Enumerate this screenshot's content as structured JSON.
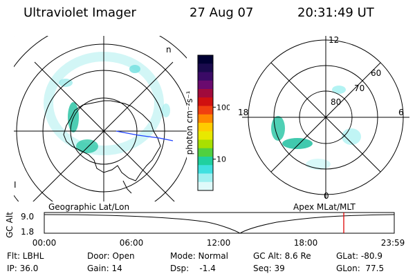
{
  "header": {
    "title": "Ultraviolet Imager",
    "date": "27 Aug 07",
    "time": "20:31:49 UT"
  },
  "left_map": {
    "caption": "Geographic Lat/Lon",
    "edge_marks": [
      "n",
      "I"
    ]
  },
  "right_map": {
    "caption": "Apex MLat/MLT",
    "mlt_labels": [
      "12",
      "18",
      "6",
      "0"
    ],
    "mlat_labels": [
      "60",
      "70",
      "80"
    ]
  },
  "colorbar": {
    "unit_label": "photon cm⁻²s⁻¹",
    "scale": "log",
    "ticks": [
      {
        "value": 100,
        "label": "100"
      },
      {
        "value": 10,
        "label": "10"
      }
    ],
    "colors": [
      "#000033",
      "#1a0a4d",
      "#3a0a66",
      "#6a0a6e",
      "#a00a3c",
      "#d01010",
      "#f04010",
      "#ff8800",
      "#ffcc00",
      "#e8e800",
      "#a8e000",
      "#50d040",
      "#20d0a0",
      "#40e0e0",
      "#a0f0f0",
      "#dffafa"
    ]
  },
  "timeline": {
    "ylabel": "GC Alt",
    "yticks": [
      "9.0",
      "1.8"
    ],
    "xticks": [
      "00:00",
      "06:00",
      "12:00",
      "18:00",
      "23:59"
    ],
    "marker_color": "#dd0000"
  },
  "footer": {
    "row1": [
      "Flt: LBHL",
      "Door: Open",
      "Mode: Normal",
      "GC Alt: 8.6 Re",
      "GLat: -80.9"
    ],
    "row2": [
      "IP: 36.0",
      "Gain: 14",
      "Dsp:    -1.4",
      "Seq: 39",
      "GLon:  77.5"
    ]
  }
}
